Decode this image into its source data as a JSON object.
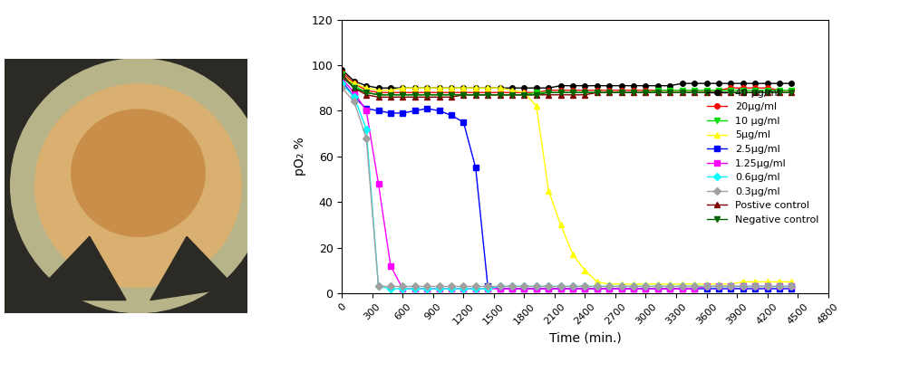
{
  "chart_data": {
    "type": "line",
    "x_label": "Time (min.)",
    "y_label": "pO₂ %",
    "x": [
      0,
      120,
      240,
      360,
      480,
      600,
      720,
      840,
      960,
      1080,
      1200,
      1320,
      1440,
      1560,
      1680,
      1800,
      1920,
      2040,
      2160,
      2280,
      2400,
      2520,
      2640,
      2760,
      2880,
      3000,
      3120,
      3240,
      3360,
      3480,
      3600,
      3720,
      3840,
      3960,
      4080,
      4200,
      4320,
      4440
    ],
    "xlim": [
      0,
      4800
    ],
    "xticks": [
      0,
      300,
      600,
      900,
      1200,
      1500,
      1800,
      2100,
      2400,
      2700,
      3000,
      3300,
      3600,
      3900,
      4200,
      4500,
      4800
    ],
    "ylim": [
      0,
      120
    ],
    "yticks": [
      0,
      20,
      40,
      60,
      80,
      100,
      120
    ],
    "grid": false,
    "legend": "center right",
    "series": [
      {
        "name": "40 µg/ml",
        "color": "#000000",
        "marker": "circle",
        "values": [
          98,
          93,
          91,
          90,
          90,
          90,
          90,
          90,
          90,
          90,
          90,
          90,
          90,
          90,
          90,
          90,
          90,
          90,
          91,
          91,
          91,
          91,
          91,
          91,
          91,
          91,
          91,
          91,
          92,
          92,
          92,
          92,
          92,
          92,
          92,
          92,
          92,
          92
        ]
      },
      {
        "name": "20µg/ml",
        "color": "#ff0000",
        "marker": "circle",
        "values": [
          97,
          92,
          89,
          88,
          88,
          88,
          88,
          88,
          88,
          88,
          88,
          88,
          88,
          88,
          88,
          88,
          88,
          89,
          89,
          89,
          89,
          89,
          89,
          89,
          89,
          89,
          89,
          89,
          89,
          89,
          89,
          89,
          90,
          90,
          90,
          90,
          89,
          89
        ]
      },
      {
        "name": "10 µg/ml",
        "color": "#00dd00",
        "marker": "triangle_down",
        "values": [
          96,
          91,
          88,
          87,
          87,
          87,
          87,
          87,
          87,
          87,
          87,
          87,
          87,
          87,
          87,
          87,
          88,
          88,
          88,
          88,
          88,
          88,
          88,
          88,
          88,
          88,
          89,
          89,
          89,
          89,
          89,
          89,
          89,
          89,
          89,
          89,
          89,
          89
        ]
      },
      {
        "name": "5µg/ml",
        "color": "#ffff00",
        "marker": "triangle_up",
        "values": [
          95,
          92,
          90,
          89,
          89,
          90,
          90,
          90,
          90,
          90,
          90,
          90,
          90,
          90,
          89,
          88,
          82,
          45,
          30,
          17,
          10,
          5,
          4,
          4,
          4,
          4,
          4,
          4,
          4,
          4,
          4,
          4,
          4,
          5,
          5,
          5,
          5,
          5
        ]
      },
      {
        "name": "2.5µg/ml",
        "color": "#0000ff",
        "marker": "square",
        "values": [
          93,
          86,
          81,
          80,
          79,
          79,
          80,
          81,
          80,
          78,
          75,
          55,
          3,
          2,
          2,
          2,
          2,
          2,
          2,
          2,
          2,
          2,
          2,
          2,
          2,
          2,
          2,
          2,
          2,
          2,
          2,
          2,
          2,
          2,
          2,
          2,
          2,
          2
        ]
      },
      {
        "name": "1.25µg/ml",
        "color": "#ff00ff",
        "marker": "square",
        "values": [
          94,
          88,
          80,
          48,
          12,
          2,
          2,
          2,
          2,
          2,
          2,
          2,
          2,
          2,
          2,
          2,
          2,
          2,
          2,
          2,
          2,
          2,
          2,
          2,
          2,
          2,
          2,
          2,
          2,
          2,
          3,
          3,
          3,
          3,
          3,
          3,
          3,
          3
        ]
      },
      {
        "name": "0.6µg/ml",
        "color": "#00ffff",
        "marker": "diamond",
        "values": [
          92,
          86,
          72,
          3,
          2,
          2,
          2,
          2,
          2,
          2,
          2,
          2,
          2,
          3,
          3,
          3,
          3,
          3,
          3,
          3,
          3,
          3,
          3,
          3,
          3,
          3,
          3,
          3,
          3,
          3,
          3,
          3,
          3,
          3,
          3,
          3,
          3,
          3
        ]
      },
      {
        "name": "0.3µg/ml",
        "color": "#a0a0a0",
        "marker": "diamond",
        "values": [
          90,
          84,
          68,
          3,
          3,
          3,
          3,
          3,
          3,
          3,
          3,
          3,
          3,
          3,
          3,
          3,
          3,
          3,
          3,
          3,
          3,
          3,
          3,
          3,
          3,
          3,
          3,
          3,
          3,
          3,
          3,
          3,
          3,
          3,
          3,
          3,
          3,
          3
        ]
      },
      {
        "name": "Postive control",
        "color": "#800000",
        "marker": "triangle_up",
        "values": [
          96,
          90,
          87,
          86,
          86,
          86,
          86,
          86,
          86,
          86,
          87,
          87,
          87,
          87,
          87,
          87,
          87,
          87,
          87,
          87,
          87,
          88,
          88,
          88,
          88,
          88,
          88,
          88,
          88,
          88,
          88,
          88,
          88,
          88,
          88,
          88,
          88,
          88
        ]
      },
      {
        "name": "Negative control",
        "color": "#006400",
        "marker": "triangle_down",
        "values": [
          95,
          90,
          88,
          87,
          87,
          87,
          87,
          87,
          87,
          87,
          87,
          87,
          87,
          87,
          87,
          87,
          87,
          88,
          88,
          88,
          88,
          88,
          88,
          88,
          88,
          88,
          88,
          88,
          88,
          88,
          88,
          88,
          88,
          88,
          88,
          88,
          88,
          88
        ]
      }
    ]
  }
}
